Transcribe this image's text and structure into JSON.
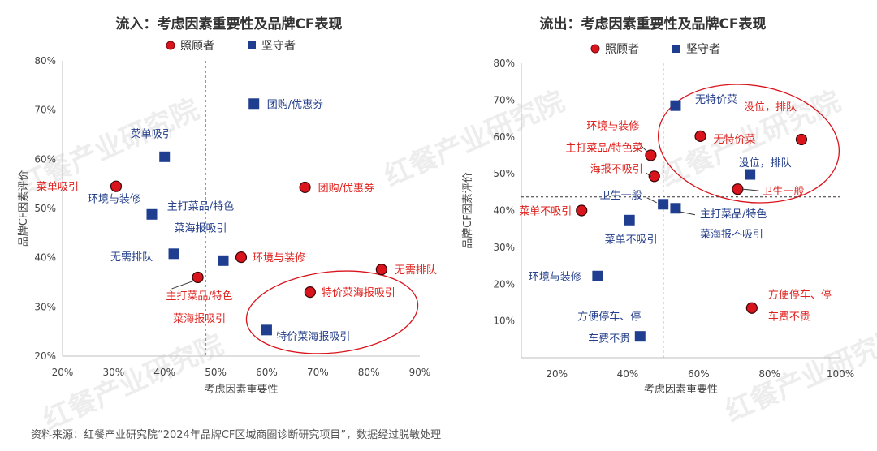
{
  "colors": {
    "red": "#d9141c",
    "navy": "#1f3e8f",
    "red_label": "#e0221e",
    "navy_label": "#27408b"
  },
  "source": "资料来源：红餐产业研究院“2024年品牌CF区域商圈诊断研究项目”，数据经过脱敏处理",
  "watermark": "红餐产业研究院",
  "chart_data": [
    {
      "type": "scatter",
      "title": "流入：考虑因素重要性及品牌CF表现",
      "xlabel": "考虑因素重要性",
      "ylabel": "品牌CF因素评价",
      "xlim": [
        20,
        90
      ],
      "ylim": [
        20,
        80
      ],
      "x_ticks": [
        "20%",
        "30%",
        "40%",
        "50%",
        "60%",
        "70%",
        "80%",
        "90%"
      ],
      "y_ticks": [
        "20%",
        "30%",
        "40%",
        "50%",
        "60%",
        "70%",
        "80%"
      ],
      "divider": {
        "x": 48,
        "y": 44.8
      },
      "legend": [
        "照顾者",
        "坚守者"
      ],
      "legend_position": "top-center",
      "series": [
        {
          "name": "照顾者",
          "marker": "circle",
          "points": [
            {
              "x": 30.5,
              "y": 54.5,
              "label": [
                "菜单吸引"
              ]
            },
            {
              "x": 67.5,
              "y": 54.3,
              "label": [
                "团购/优惠券"
              ]
            },
            {
              "x": 55,
              "y": 40.1,
              "label": [
                "环境与装修"
              ]
            },
            {
              "x": 82.5,
              "y": 37.6,
              "label": [
                "无需排队"
              ]
            },
            {
              "x": 46.5,
              "y": 36,
              "label": [
                "主打菜品/特色",
                "菜海报吸引"
              ]
            },
            {
              "x": 68.5,
              "y": 33,
              "label": [
                "特价菜海报吸引"
              ]
            }
          ]
        },
        {
          "name": "坚守者",
          "marker": "square",
          "points": [
            {
              "x": 57.5,
              "y": 71.3,
              "label": [
                "团购/优惠券"
              ]
            },
            {
              "x": 40,
              "y": 60.5,
              "label": [
                "菜单吸引"
              ]
            },
            {
              "x": 37.5,
              "y": 48.8,
              "label": [
                "环境与装修"
              ]
            },
            {
              "x": 41.8,
              "y": 40.8,
              "label": [
                "无需排队"
              ]
            },
            {
              "x": 51.5,
              "y": 39.4,
              "label": [
                "主打菜品/特色",
                "菜海报吸引"
              ]
            },
            {
              "x": 60,
              "y": 25.3,
              "label": [
                "特价菜海报吸引"
              ]
            }
          ]
        }
      ]
    },
    {
      "type": "scatter",
      "title": "流出：考虑因素重要性及品牌CF表现",
      "xlabel": "考虑因素重要性",
      "ylabel": "品牌CF因素评价",
      "xlim": [
        10,
        100
      ],
      "ylim": [
        0,
        80
      ],
      "x_ticks": [
        "20%",
        "40%",
        "60%",
        "80%",
        "100%"
      ],
      "y_ticks": [
        "10%",
        "20%",
        "30%",
        "40%",
        "50%",
        "60%",
        "70%",
        "80%"
      ],
      "divider": {
        "x": 50,
        "y": 43.7
      },
      "legend": [
        "照顾者",
        "坚守者"
      ],
      "legend_position": "top-center",
      "series": [
        {
          "name": "照顾者",
          "marker": "circle",
          "points": [
            {
              "x": 60.5,
              "y": 60.2,
              "label": [
                "无特价菜"
              ]
            },
            {
              "x": 89,
              "y": 59.3,
              "label": [
                "没位，排队"
              ]
            },
            {
              "x": 46.5,
              "y": 55,
              "label": [
                "环境与装修"
              ]
            },
            {
              "x": 47.5,
              "y": 49.3,
              "label": [
                "主打菜品/特色菜",
                "海报不吸引"
              ]
            },
            {
              "x": 71,
              "y": 45.8,
              "label": [
                "卫生一般"
              ]
            },
            {
              "x": 27,
              "y": 40,
              "label": [
                "菜单不吸引"
              ]
            },
            {
              "x": 75,
              "y": 13.5,
              "label": [
                "方便停车、停",
                "车费不贵"
              ]
            }
          ]
        },
        {
          "name": "坚守者",
          "marker": "square",
          "points": [
            {
              "x": 53.5,
              "y": 68.5,
              "label": [
                "无特价菜"
              ]
            },
            {
              "x": 74.5,
              "y": 49.8,
              "label": [
                "没位，排队"
              ]
            },
            {
              "x": 50,
              "y": 41.7,
              "label": [
                "卫生一般"
              ]
            },
            {
              "x": 53.5,
              "y": 40.6,
              "label": [
                "主打菜品/特色",
                "菜海报不吸引"
              ]
            },
            {
              "x": 40.5,
              "y": 37.4,
              "label": [
                "菜单不吸引"
              ]
            },
            {
              "x": 31.5,
              "y": 22.2,
              "label": [
                "环境与装修"
              ]
            },
            {
              "x": 43.5,
              "y": 5.8,
              "label": [
                "方便停车、停",
                "车费不贵"
              ]
            }
          ]
        }
      ]
    }
  ]
}
